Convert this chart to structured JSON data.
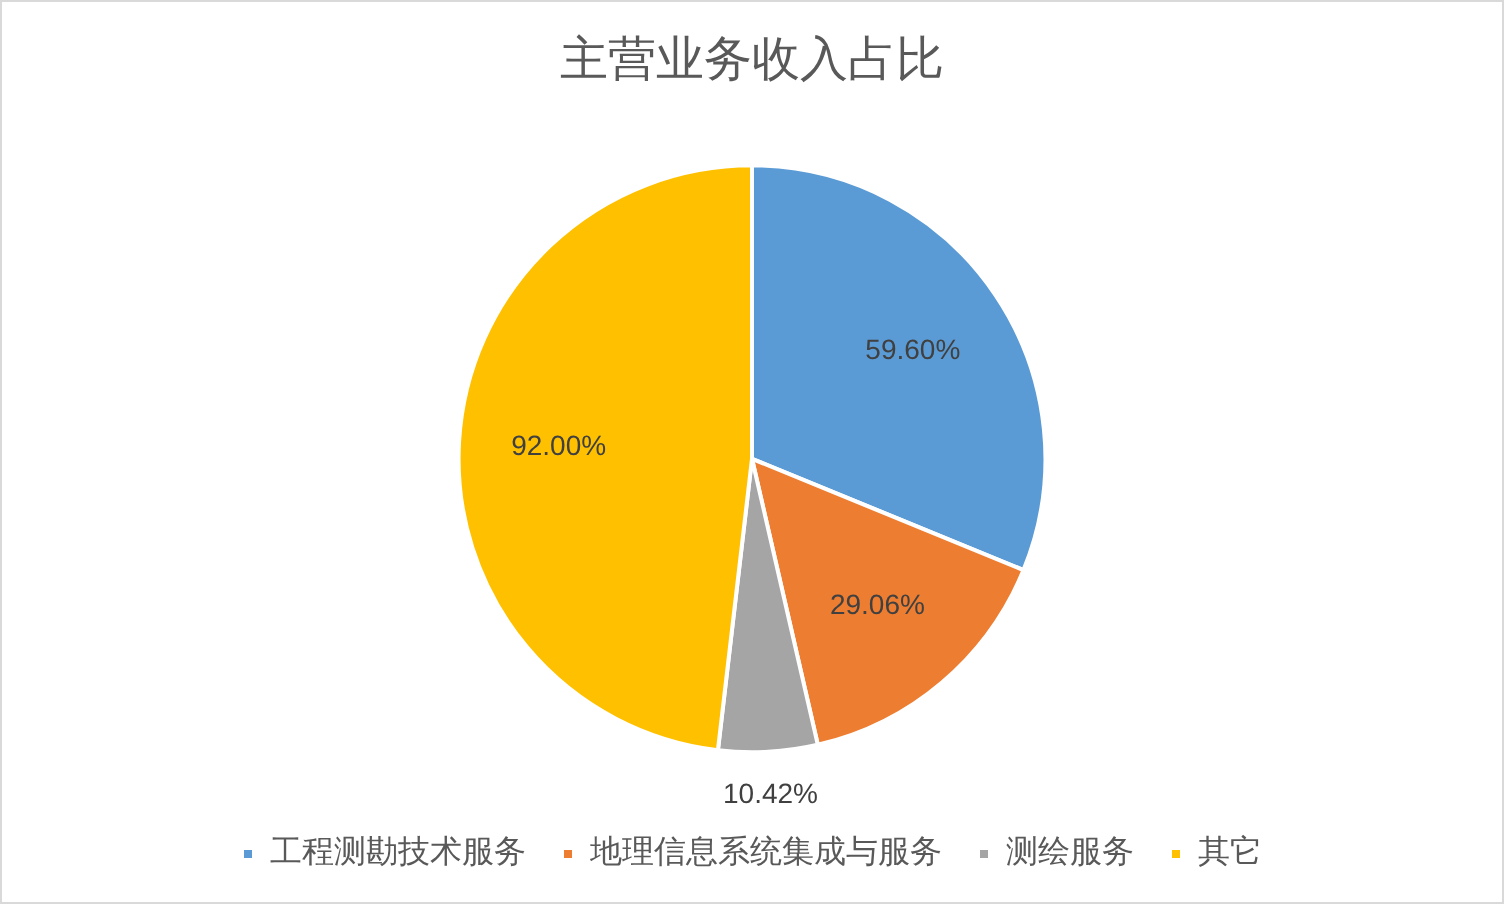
{
  "chart_data": {
    "type": "pie",
    "title": "主营业务收入占比",
    "categories": [
      "工程测勘技术服务",
      "地理信息系统集成与服务",
      "测绘服务",
      "其它"
    ],
    "values": [
      59.6,
      29.06,
      10.42,
      92.0
    ],
    "colors": [
      "#5b9bd5",
      "#ed7d31",
      "#a5a5a5",
      "#ffc000"
    ],
    "value_labels": [
      "59.60%",
      "29.06%",
      "10.42%",
      "92.00%"
    ],
    "legend": "bottom"
  }
}
